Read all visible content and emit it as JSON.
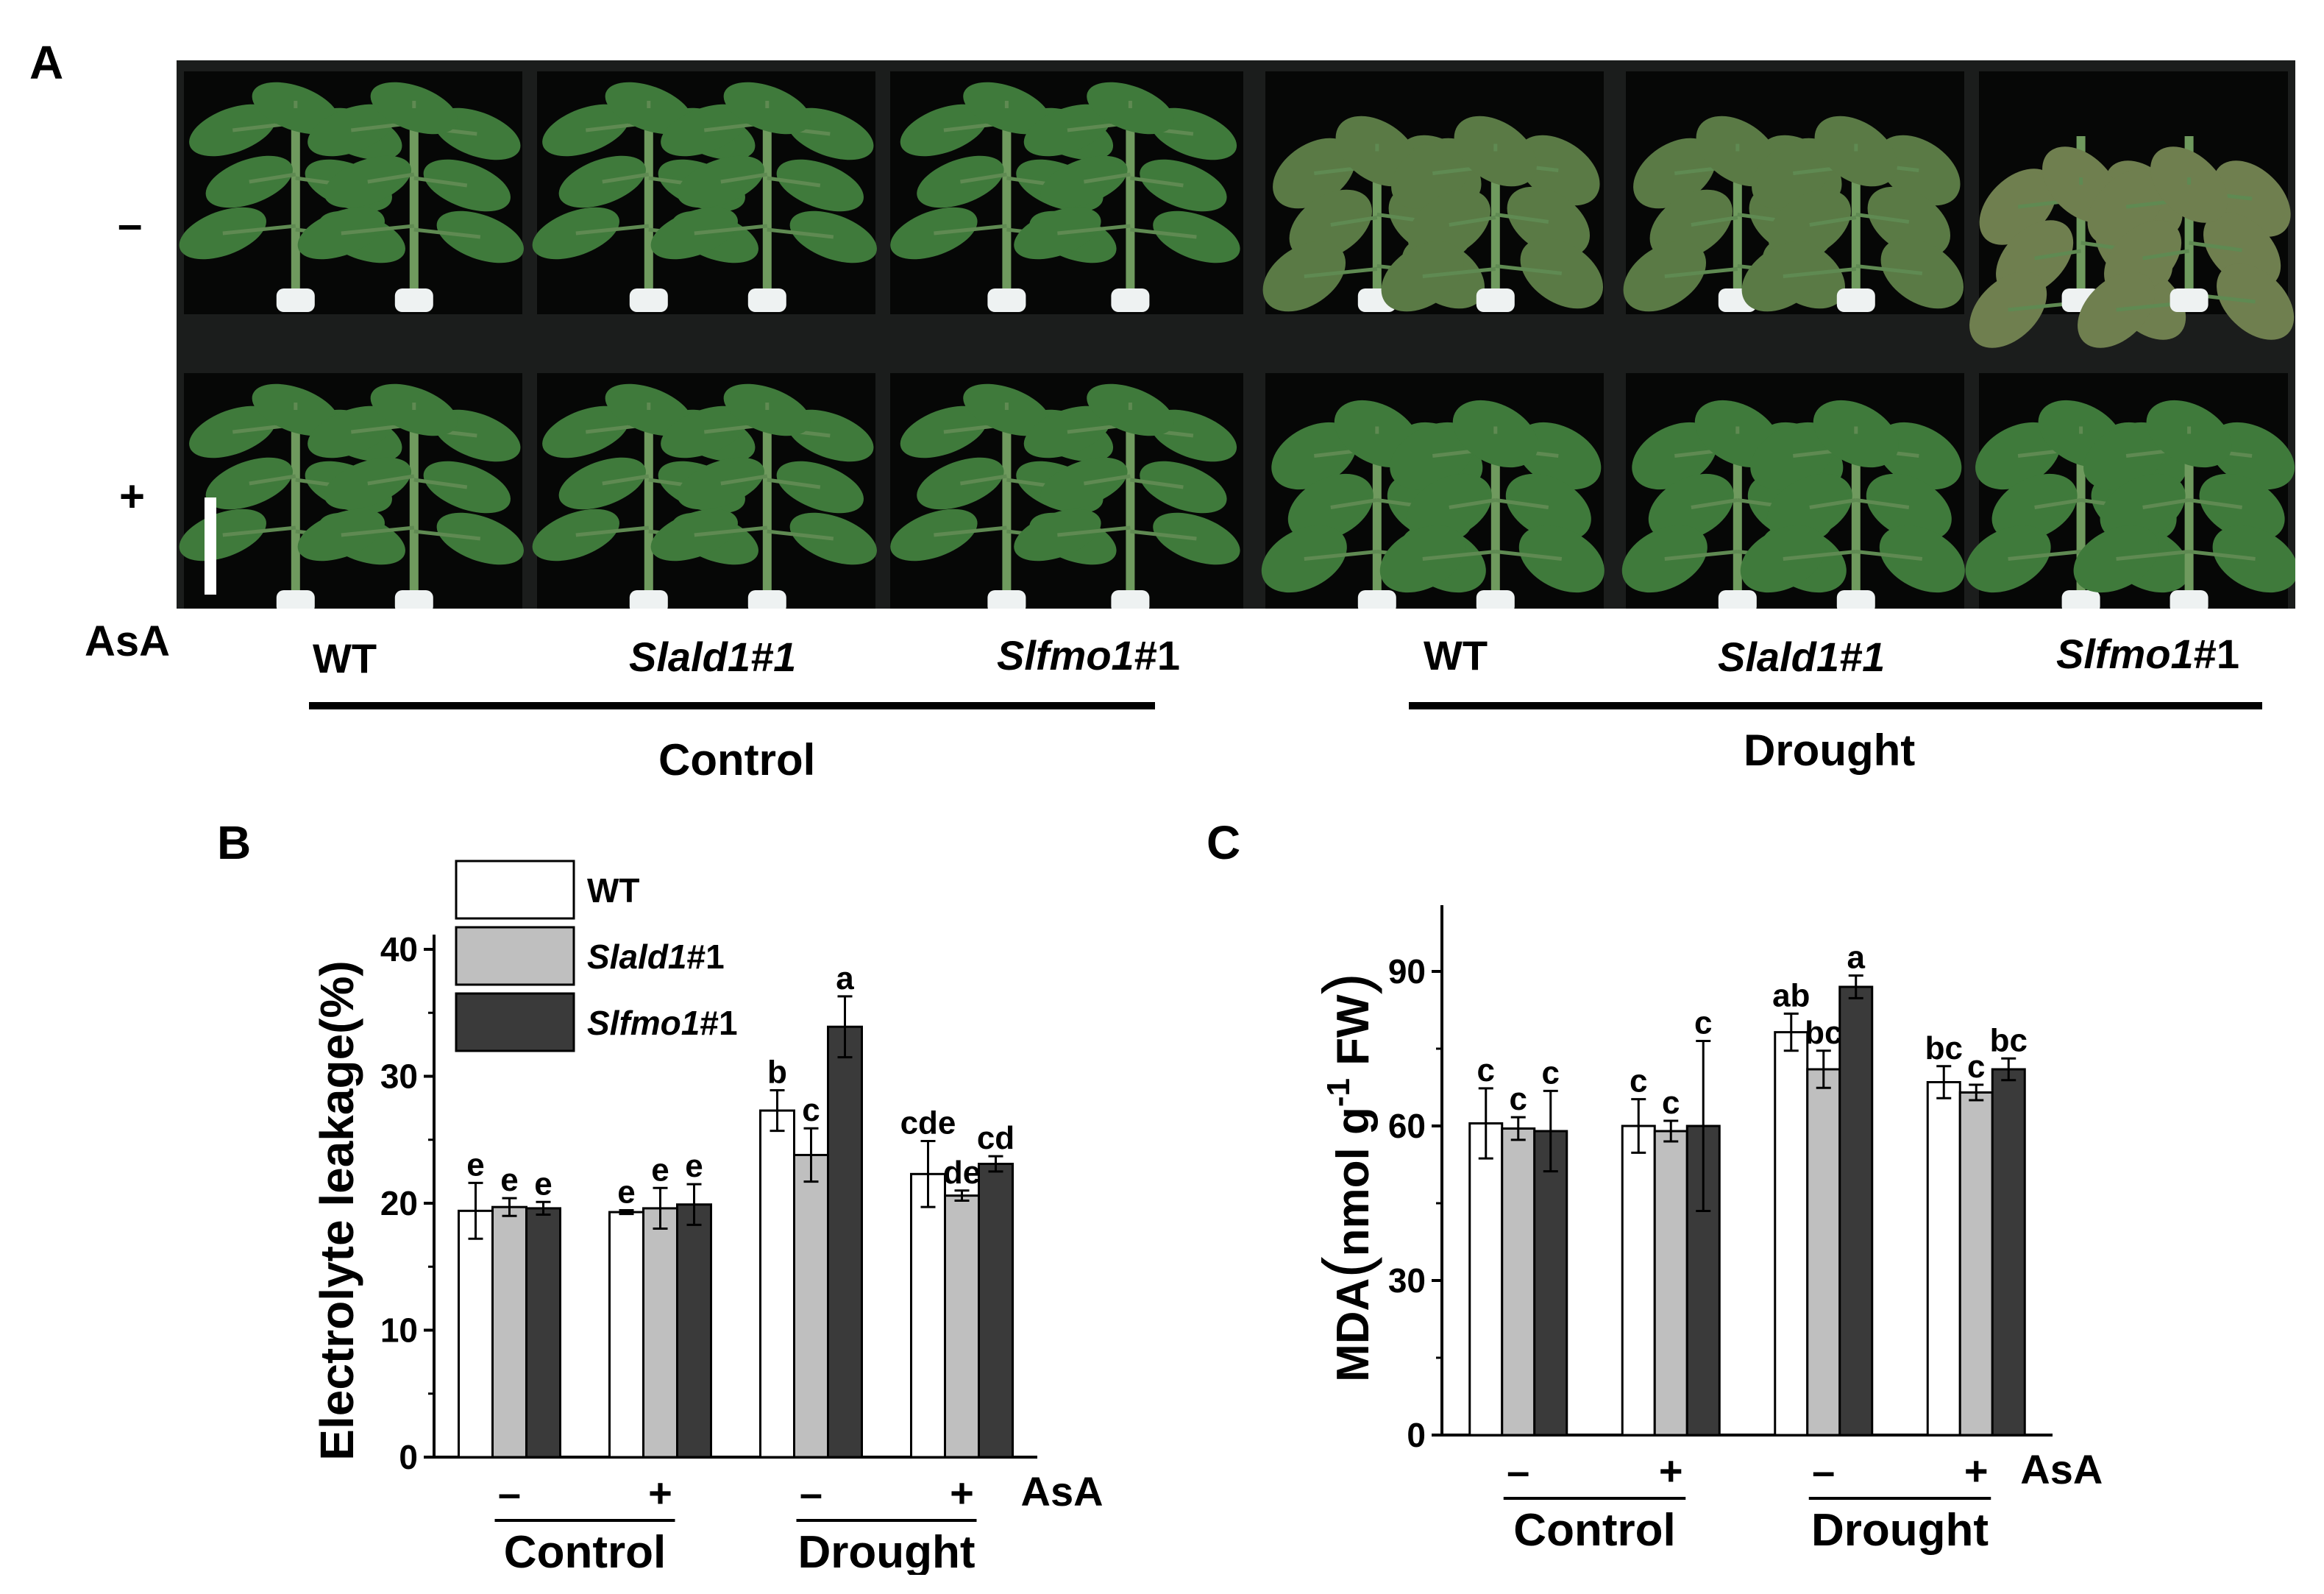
{
  "panel_a": {
    "letter": "A",
    "row_signs": [
      "–",
      "+"
    ],
    "asa_label": "AsA",
    "genotype_labels": [
      {
        "prefix": "",
        "italic": "",
        "suffix": "WT"
      },
      {
        "prefix": "",
        "italic": "Slald1#1",
        "suffix": ""
      },
      {
        "prefix": "",
        "italic": "Slfmo1",
        "suffix": "#1"
      },
      {
        "prefix": "",
        "italic": "",
        "suffix": "WT"
      },
      {
        "prefix": "",
        "italic": "Slald1#1",
        "suffix": ""
      },
      {
        "prefix": "",
        "italic": "Slfmo1",
        "suffix": "#1"
      }
    ],
    "group_labels": [
      "Control",
      "Drought"
    ],
    "plants": [
      {
        "row": "-",
        "condition": "control",
        "state": "healthy"
      },
      {
        "row": "-",
        "condition": "control",
        "state": "healthy"
      },
      {
        "row": "-",
        "condition": "control",
        "state": "healthy"
      },
      {
        "row": "-",
        "condition": "drought",
        "state": "wilted"
      },
      {
        "row": "-",
        "condition": "drought",
        "state": "wilted"
      },
      {
        "row": "-",
        "condition": "drought",
        "state": "severely-wilted"
      },
      {
        "row": "+",
        "condition": "control",
        "state": "healthy"
      },
      {
        "row": "+",
        "condition": "control",
        "state": "healthy"
      },
      {
        "row": "+",
        "condition": "control",
        "state": "healthy"
      },
      {
        "row": "+",
        "condition": "drought",
        "state": "mild-wilt"
      },
      {
        "row": "+",
        "condition": "drought",
        "state": "mild-wilt"
      },
      {
        "row": "+",
        "condition": "drought",
        "state": "mild-wilt"
      }
    ],
    "colors": {
      "healthy": "#3f7a3b",
      "wilted": "#5a7a45",
      "severe": "#6f7f4f",
      "pot": "#eef2f2"
    }
  },
  "chart_data": [
    {
      "type": "bar",
      "panel": "B",
      "ylabel": "Electrolyte leakage(%)",
      "ylim": [
        0,
        40
      ],
      "yticks": [
        "0",
        "10",
        "20",
        "30",
        "40"
      ],
      "groups": [
        "–",
        "+",
        "–",
        "+"
      ],
      "asa_label": "AsA",
      "conditions": [
        "Control",
        "Drought"
      ],
      "legend": [
        {
          "italic": "",
          "suffix": "WT"
        },
        {
          "italic": "Slald1",
          "suffix": "#1"
        },
        {
          "italic": "Slfmo1",
          "suffix": "#1"
        }
      ],
      "legend_position": "top-left",
      "series_colors": [
        "#ffffff",
        "#bfbfbf",
        "#3a3a3a"
      ],
      "series": [
        {
          "values": [
            19.4,
            19.3,
            27.3,
            22.3
          ],
          "errors": [
            2.2,
            0.15,
            1.6,
            2.6
          ],
          "letters": [
            "e",
            "e",
            "b",
            "cde"
          ]
        },
        {
          "values": [
            19.7,
            19.6,
            23.8,
            20.6
          ],
          "errors": [
            0.7,
            1.6,
            2.1,
            0.4
          ],
          "letters": [
            "e",
            "e",
            "c",
            "de"
          ]
        },
        {
          "values": [
            19.6,
            19.9,
            33.9,
            23.1
          ],
          "errors": [
            0.5,
            1.6,
            2.4,
            0.6
          ],
          "letters": [
            "e",
            "e",
            "a",
            "cd"
          ]
        }
      ]
    },
    {
      "type": "bar",
      "panel": "C",
      "ylabel_main": "MDA",
      "ylabel_unit": "nmol g",
      "ylabel_exp": "-1",
      "ylabel_tail": "FW",
      "ylim": [
        0,
        100
      ],
      "yticks": [
        "0",
        "30",
        "60",
        "90"
      ],
      "groups": [
        "–",
        "+",
        "–",
        "+"
      ],
      "asa_label": "AsA",
      "conditions": [
        "Control",
        "Drought"
      ],
      "series_colors": [
        "#ffffff",
        "#bfbfbf",
        "#3a3a3a"
      ],
      "series": [
        {
          "values": [
            60.5,
            60.0,
            78.2,
            68.5
          ],
          "errors": [
            6.8,
            5.2,
            3.6,
            3.1
          ],
          "letters": [
            "c",
            "c",
            "ab",
            "bc"
          ]
        },
        {
          "values": [
            59.5,
            59.0,
            71.0,
            66.5
          ],
          "errors": [
            2.2,
            2.0,
            3.6,
            1.5
          ],
          "letters": [
            "c",
            "c",
            "bc",
            "c"
          ]
        },
        {
          "values": [
            59.0,
            60.0,
            87.0,
            71.0
          ],
          "errors": [
            7.8,
            16.5,
            2.2,
            2.1
          ],
          "letters": [
            "c",
            "c",
            "a",
            "bc"
          ]
        }
      ]
    }
  ]
}
